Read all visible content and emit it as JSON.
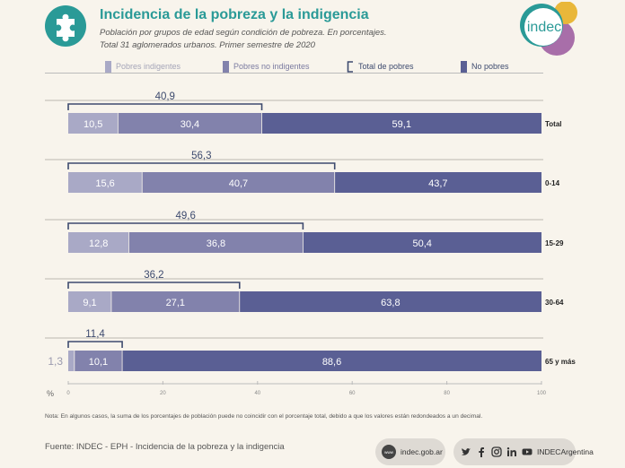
{
  "header": {
    "title": "Incidencia de la pobreza y la indigencia",
    "subtitle_line1": "Población por grupos de edad según condición de pobreza. En porcentajes.",
    "subtitle_line2": "Total 31 aglomerados urbanos. Primer semestre de 2020",
    "logo_text": "indec"
  },
  "colors": {
    "indigentes": "#a9a9c6",
    "no_indigentes": "#8282ac",
    "no_pobres": "#5a5f94",
    "bracket": "#3d4a6e",
    "teal": "#2a9a97",
    "purple": "#a86ea9",
    "yellow": "#e9b73a"
  },
  "chart_data": {
    "type": "bar",
    "stacked": true,
    "orientation": "horizontal",
    "categories": [
      "Total",
      "0-14",
      "15-29",
      "30-64",
      "65 y más"
    ],
    "series": [
      {
        "name": "Pobres indigentes",
        "values": [
          10.5,
          15.6,
          12.8,
          9.1,
          1.3
        ],
        "labels": [
          "10,5",
          "15,6",
          "12,8",
          "9,1",
          "1,3"
        ]
      },
      {
        "name": "Pobres no indigentes",
        "values": [
          30.4,
          40.7,
          36.8,
          27.1,
          10.1
        ],
        "labels": [
          "30,4",
          "40,7",
          "36,8",
          "27,1",
          "10,1"
        ]
      },
      {
        "name": "No pobres",
        "values": [
          59.1,
          43.7,
          50.4,
          63.8,
          88.6
        ],
        "labels": [
          "59,1",
          "43,7",
          "50,4",
          "63,8",
          "88,6"
        ]
      }
    ],
    "total_pobres": {
      "name": "Total de pobres",
      "values": [
        40.9,
        56.3,
        49.6,
        36.2,
        11.4
      ],
      "labels": [
        "40,9",
        "56,3",
        "49,6",
        "36,2",
        "11,4"
      ]
    },
    "xlim": [
      0,
      100
    ],
    "xticks": [
      0,
      20,
      40,
      60,
      80,
      100
    ],
    "xtick_labels": [
      "0",
      "20",
      "40",
      "60",
      "80",
      "100"
    ],
    "xlabel": "%",
    "legend_position": "top"
  },
  "note": "Nota: En algunos casos, la suma de los porcentajes de población puede no coincidir con el porcentaje total, debido a que los valores están redondeados a un decimal.",
  "footer": {
    "source": "Fuente: INDEC - EPH - Incidencia de la pobreza y la indigencia",
    "web_icon_label": "www",
    "web": "indec.gob.ar",
    "social_handle": "INDECArgentina",
    "social_icons": [
      "twitter-icon",
      "facebook-icon",
      "instagram-icon",
      "linkedin-icon",
      "youtube-icon"
    ]
  }
}
